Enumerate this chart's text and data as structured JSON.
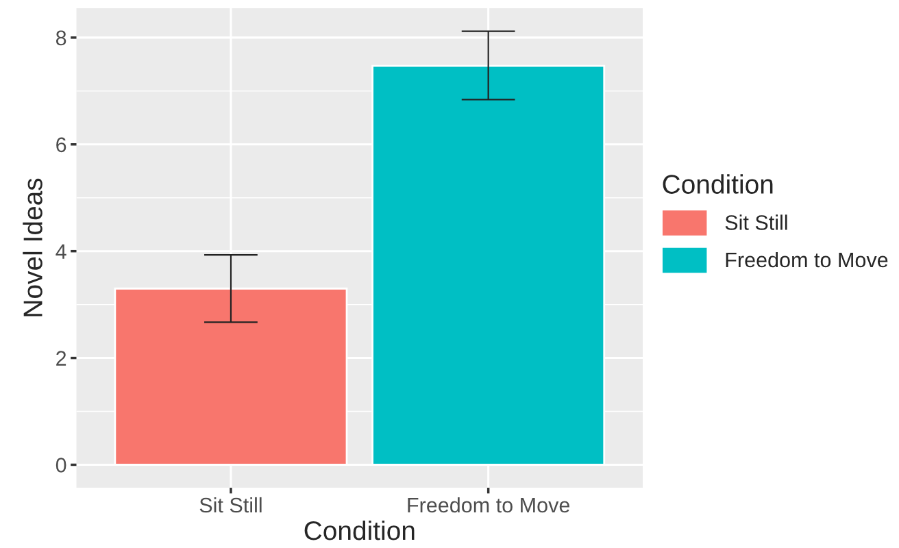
{
  "chart_data": {
    "type": "bar",
    "xlabel": "Condition",
    "ylabel": "Novel Ideas",
    "legend_title": "Condition",
    "categories": [
      "Sit Still",
      "Freedom to Move"
    ],
    "series": [
      {
        "name": "Sit Still",
        "color": "#f8766d",
        "values": [
          3.3,
          null
        ],
        "errors": [
          [
            2.67,
            3.93
          ],
          null
        ]
      },
      {
        "name": "Freedom to Move",
        "color": "#00bfc4",
        "values": [
          null,
          7.47
        ],
        "errors": [
          null,
          [
            6.84,
            8.12
          ]
        ]
      }
    ],
    "ylim": [
      -0.43,
      8.55
    ],
    "yticks": [
      0,
      2,
      4,
      6,
      8
    ],
    "grid": true,
    "legend": "right"
  }
}
